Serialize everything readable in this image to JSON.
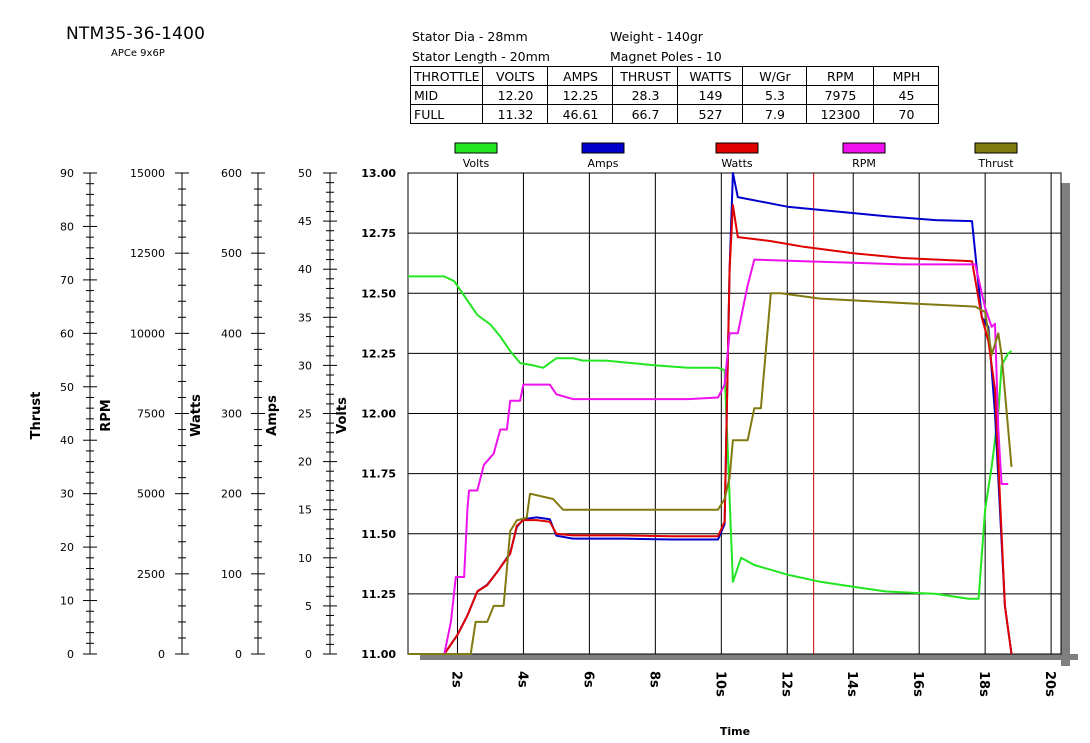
{
  "title": "NTM35-36-1400",
  "subtitle": "APCe 9x6P",
  "specs": {
    "stator_dia": "Stator Dia - 28mm",
    "weight": "Weight - 140gr",
    "stator_length": "Stator Length - 20mm",
    "magnet_poles": "Magnet Poles - 10"
  },
  "table": {
    "headers": [
      "THROTTLE",
      "VOLTS",
      "AMPS",
      "THRUST",
      "WATTS",
      "W/Gr",
      "RPM",
      "MPH"
    ],
    "rows": [
      [
        "MID",
        "12.20",
        "12.25",
        "28.3",
        "149",
        "5.3",
        "7975",
        "45"
      ],
      [
        "FULL",
        "11.32",
        "46.61",
        "66.7",
        "527",
        "7.9",
        "12300",
        "70"
      ]
    ]
  },
  "chart_data": {
    "type": "line",
    "xlabel": "Time",
    "x_ticks": [
      "2s",
      "4s",
      "6s",
      "8s",
      "10s",
      "12s",
      "14s",
      "16s",
      "18s",
      "20s"
    ],
    "xlim": [
      0.5,
      20.3
    ],
    "marker_x": 12.8,
    "grid": true,
    "legend_placement": "top",
    "axes": [
      {
        "key": "thrust",
        "label": "Thrust",
        "min": 0,
        "max": 90,
        "ticks": [
          0,
          10,
          20,
          30,
          40,
          50,
          60,
          70,
          80,
          90
        ]
      },
      {
        "key": "rpm",
        "label": "RPM",
        "min": 0,
        "max": 15000,
        "ticks": [
          0,
          2500,
          5000,
          7500,
          10000,
          12500,
          15000
        ]
      },
      {
        "key": "watts",
        "label": "Watts",
        "min": 0,
        "max": 600,
        "ticks": [
          0,
          100,
          200,
          300,
          400,
          500,
          600
        ]
      },
      {
        "key": "amps",
        "label": "Amps",
        "min": 0,
        "max": 50,
        "ticks": [
          0,
          5,
          10,
          15,
          20,
          25,
          30,
          35,
          40,
          45,
          50
        ]
      },
      {
        "key": "volts",
        "label": "Volts",
        "min": 11.0,
        "max": 13.0,
        "ticks": [
          "11.00",
          "11.25",
          "11.50",
          "11.75",
          "12.00",
          "12.25",
          "12.50",
          "12.75",
          "13.00"
        ]
      }
    ],
    "series": [
      {
        "name": "Volts",
        "axis": "volts",
        "color": "#22e622",
        "points": [
          [
            0.5,
            12.57
          ],
          [
            1.6,
            12.57
          ],
          [
            1.9,
            12.55
          ],
          [
            2.3,
            12.47
          ],
          [
            2.6,
            12.41
          ],
          [
            3.0,
            12.37
          ],
          [
            3.3,
            12.32
          ],
          [
            3.6,
            12.26
          ],
          [
            3.9,
            12.21
          ],
          [
            4.3,
            12.2
          ],
          [
            4.6,
            12.19
          ],
          [
            5.0,
            12.23
          ],
          [
            5.5,
            12.23
          ],
          [
            5.8,
            12.22
          ],
          [
            6.5,
            12.22
          ],
          [
            8.0,
            12.2
          ],
          [
            9.0,
            12.19
          ],
          [
            9.9,
            12.19
          ],
          [
            10.1,
            12.18
          ],
          [
            10.25,
            11.65
          ],
          [
            10.35,
            11.3
          ],
          [
            10.6,
            11.4
          ],
          [
            11.0,
            11.37
          ],
          [
            12.0,
            11.33
          ],
          [
            13.0,
            11.3
          ],
          [
            14.0,
            11.28
          ],
          [
            15.0,
            11.26
          ],
          [
            16.5,
            11.25
          ],
          [
            17.5,
            11.23
          ],
          [
            17.8,
            11.23
          ],
          [
            18.0,
            11.6
          ],
          [
            18.2,
            11.78
          ],
          [
            18.4,
            12.0
          ],
          [
            18.5,
            12.2
          ],
          [
            18.7,
            12.25
          ],
          [
            18.8,
            12.26
          ]
        ]
      },
      {
        "name": "Amps",
        "axis": "amps",
        "color": "#0000cc",
        "points": [
          [
            0.5,
            0
          ],
          [
            1.6,
            0
          ],
          [
            2.0,
            2
          ],
          [
            2.3,
            4
          ],
          [
            2.6,
            6.5
          ],
          [
            2.9,
            7.2
          ],
          [
            3.2,
            8.5
          ],
          [
            3.6,
            10.5
          ],
          [
            3.8,
            13.2
          ],
          [
            4.0,
            14.0
          ],
          [
            4.4,
            14.2
          ],
          [
            4.8,
            14.0
          ],
          [
            5.0,
            12.3
          ],
          [
            5.5,
            12.0
          ],
          [
            7.0,
            12.0
          ],
          [
            8.5,
            11.9
          ],
          [
            9.9,
            11.9
          ],
          [
            10.1,
            13.5
          ],
          [
            10.25,
            40
          ],
          [
            10.35,
            50.0
          ],
          [
            10.5,
            47.5
          ],
          [
            12.0,
            46.5
          ],
          [
            13.5,
            46.0
          ],
          [
            15.0,
            45.5
          ],
          [
            16.5,
            45.1
          ],
          [
            17.6,
            45.0
          ],
          [
            17.9,
            35
          ],
          [
            18.1,
            34
          ],
          [
            18.3,
            25
          ],
          [
            18.6,
            5
          ],
          [
            18.8,
            0
          ]
        ]
      },
      {
        "name": "Watts",
        "axis": "watts",
        "color": "#e00000",
        "points": [
          [
            0.5,
            0
          ],
          [
            1.6,
            0
          ],
          [
            2.0,
            24
          ],
          [
            2.3,
            48
          ],
          [
            2.6,
            78
          ],
          [
            2.9,
            86
          ],
          [
            3.2,
            102
          ],
          [
            3.6,
            125
          ],
          [
            3.8,
            160
          ],
          [
            4.0,
            167
          ],
          [
            4.4,
            167
          ],
          [
            4.8,
            165
          ],
          [
            5.0,
            150
          ],
          [
            5.5,
            148
          ],
          [
            7.0,
            148
          ],
          [
            8.5,
            147
          ],
          [
            9.9,
            147
          ],
          [
            10.1,
            165
          ],
          [
            10.25,
            480
          ],
          [
            10.35,
            560
          ],
          [
            10.5,
            520
          ],
          [
            11.5,
            515
          ],
          [
            12.5,
            508
          ],
          [
            14.0,
            500
          ],
          [
            15.5,
            494
          ],
          [
            17.6,
            490
          ],
          [
            17.9,
            420
          ],
          [
            18.1,
            390
          ],
          [
            18.3,
            330
          ],
          [
            18.6,
            60
          ],
          [
            18.8,
            0
          ]
        ]
      },
      {
        "name": "RPM",
        "axis": "rpm",
        "color": "#ee11ee",
        "points": [
          [
            0.5,
            0
          ],
          [
            1.6,
            0
          ],
          [
            1.8,
            1000
          ],
          [
            1.95,
            2400
          ],
          [
            2.2,
            2400
          ],
          [
            2.3,
            4500
          ],
          [
            2.35,
            5100
          ],
          [
            2.6,
            5100
          ],
          [
            2.8,
            5900
          ],
          [
            3.1,
            6250
          ],
          [
            3.3,
            7000
          ],
          [
            3.5,
            7000
          ],
          [
            3.6,
            7900
          ],
          [
            3.9,
            7900
          ],
          [
            4.0,
            8400
          ],
          [
            4.8,
            8400
          ],
          [
            5.0,
            8100
          ],
          [
            5.5,
            7950
          ],
          [
            7.0,
            7950
          ],
          [
            9.0,
            7950
          ],
          [
            9.9,
            8000
          ],
          [
            10.1,
            8400
          ],
          [
            10.25,
            10000
          ],
          [
            10.5,
            10000
          ],
          [
            10.8,
            11500
          ],
          [
            11.0,
            12300
          ],
          [
            12.5,
            12250
          ],
          [
            14.0,
            12200
          ],
          [
            15.5,
            12150
          ],
          [
            17.7,
            12150
          ],
          [
            18.0,
            10800
          ],
          [
            18.2,
            10200
          ],
          [
            18.3,
            10300
          ],
          [
            18.4,
            7000
          ],
          [
            18.5,
            5300
          ],
          [
            18.7,
            5300
          ]
        ]
      },
      {
        "name": "Thrust",
        "axis": "thrust",
        "color": "#807a10",
        "points": [
          [
            0.5,
            0
          ],
          [
            2.4,
            0
          ],
          [
            2.55,
            6
          ],
          [
            2.9,
            6
          ],
          [
            3.1,
            9
          ],
          [
            3.4,
            9
          ],
          [
            3.6,
            23
          ],
          [
            3.8,
            25
          ],
          [
            4.1,
            25.5
          ],
          [
            4.2,
            30
          ],
          [
            4.9,
            29
          ],
          [
            5.2,
            27
          ],
          [
            6.0,
            27
          ],
          [
            8.0,
            27
          ],
          [
            9.9,
            27
          ],
          [
            10.1,
            29
          ],
          [
            10.25,
            33
          ],
          [
            10.35,
            40
          ],
          [
            10.8,
            40
          ],
          [
            11.0,
            46
          ],
          [
            11.2,
            46
          ],
          [
            11.5,
            67.5
          ],
          [
            11.8,
            67.5
          ],
          [
            13.0,
            66.5
          ],
          [
            14.5,
            66
          ],
          [
            16.0,
            65.5
          ],
          [
            17.7,
            65
          ],
          [
            18.0,
            64
          ],
          [
            18.2,
            56
          ],
          [
            18.4,
            60
          ],
          [
            18.5,
            56
          ],
          [
            18.8,
            35
          ]
        ]
      }
    ]
  }
}
